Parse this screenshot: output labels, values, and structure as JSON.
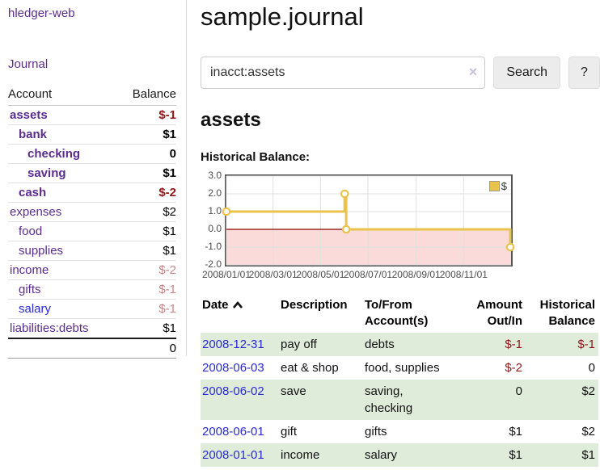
{
  "sidebar": {
    "app_title": "hledger-web",
    "nav": {
      "journal_label": "Journal"
    },
    "accounts_table": {
      "headers": {
        "account": "Account",
        "balance": "Balance"
      },
      "rows": [
        {
          "name": "assets",
          "indent": 1,
          "bold": true,
          "balance": "$-1",
          "balance_style": "neg-strong"
        },
        {
          "name": "bank",
          "indent": 2,
          "bold": true,
          "balance": "$1",
          "balance_style": "normal"
        },
        {
          "name": "checking",
          "indent": 3,
          "bold": true,
          "balance": "0",
          "balance_style": "normal"
        },
        {
          "name": "saving",
          "indent": 3,
          "bold": true,
          "balance": "$1",
          "balance_style": "normal"
        },
        {
          "name": "cash",
          "indent": 2,
          "bold": true,
          "balance": "$-2",
          "balance_style": "neg-strong"
        },
        {
          "name": "expenses",
          "indent": 1,
          "bold": false,
          "balance": "$2",
          "balance_style": "normal"
        },
        {
          "name": "food",
          "indent": 2,
          "bold": false,
          "balance": "$1",
          "balance_style": "normal"
        },
        {
          "name": "supplies",
          "indent": 2,
          "bold": false,
          "balance": "$1",
          "balance_style": "normal"
        },
        {
          "name": "income",
          "indent": 1,
          "bold": false,
          "balance": "$-2",
          "balance_style": "neg-soft"
        },
        {
          "name": "gifts",
          "indent": 2,
          "bold": false,
          "balance": "$-1",
          "balance_style": "neg-soft"
        },
        {
          "name": "salary",
          "indent": 2,
          "bold": false,
          "balance": "$-1",
          "balance_style": "neg-soft",
          "link_color": "blue"
        },
        {
          "name": "liabilities:debts",
          "indent": 1,
          "bold": false,
          "balance": "$1",
          "balance_style": "normal"
        }
      ],
      "total": "0"
    }
  },
  "header": {
    "title": "sample.journal"
  },
  "search": {
    "value": "inacct:assets",
    "clear_icon": "×",
    "button_label": "Search",
    "help_label": "?"
  },
  "account_page": {
    "title": "assets",
    "chart_label": "Historical Balance:"
  },
  "chart_data": {
    "type": "line",
    "step": true,
    "title": "Historical Balance",
    "series": [
      {
        "name": "$",
        "color": "#e9c34c",
        "points": [
          [
            "2008-01-01",
            1
          ],
          [
            "2008-06-01",
            2
          ],
          [
            "2008-06-03",
            0
          ],
          [
            "2008-12-31",
            -1
          ]
        ]
      }
    ],
    "x_range": [
      "2008-01-01",
      "2009-01-01"
    ],
    "x_ticks": [
      {
        "date": "2008-01-01",
        "label": "2008/01/01"
      },
      {
        "date": "2008-03-01",
        "label": "2008/03/01"
      },
      {
        "date": "2008-05-01",
        "label": "2008/05/01"
      },
      {
        "date": "2008-07-01",
        "label": "2008/07/01"
      },
      {
        "date": "2008-09-01",
        "label": "2008/09/01"
      },
      {
        "date": "2008-11-01",
        "label": "2008/11/01"
      }
    ],
    "y_ticks": [
      "3.0",
      "2.0",
      "1.0",
      "0.0",
      "-1.0",
      "-2.0"
    ],
    "ylim": [
      -2,
      3
    ],
    "grid": true,
    "legend": {
      "position": "top-right",
      "items": [
        {
          "label": "$",
          "color": "#e9c34c"
        }
      ]
    },
    "negative_zone": {
      "fill": "#fbdada",
      "zero_line": "#8b0000"
    }
  },
  "register_table": {
    "headers": {
      "date": "Date",
      "description": "Description",
      "accounts": "To/From\nAccount(s)",
      "amount": "Amount\nOut/In",
      "balance": "Historical\nBalance"
    },
    "sort": {
      "column": "date",
      "direction": "asc"
    },
    "rows": [
      {
        "date": "2008-12-31",
        "description": "pay off",
        "accounts": "debts",
        "amount": "$-1",
        "balance": "$-1"
      },
      {
        "date": "2008-06-03",
        "description": "eat & shop",
        "accounts": "food, supplies",
        "amount": "$-2",
        "balance": "0"
      },
      {
        "date": "2008-06-02",
        "description": "save",
        "accounts": "saving,\nchecking",
        "amount": "0",
        "balance": "$2"
      },
      {
        "date": "2008-06-01",
        "description": "gift",
        "accounts": "gifts",
        "amount": "$1",
        "balance": "$2"
      },
      {
        "date": "2008-01-01",
        "description": "income",
        "accounts": "salary",
        "amount": "$1",
        "balance": "$1"
      }
    ]
  },
  "colors": {
    "link_purple": "#5b2d8e",
    "link_blue": "#2a2ad4",
    "negative_strong": "#8f1717",
    "negative_soft": "#c78584",
    "row_highlight_green": "#dfecda",
    "chart_line_gold": "#e9c34c",
    "chart_negative_pink": "#fbdada",
    "chart_zero_line": "#8b0000"
  }
}
